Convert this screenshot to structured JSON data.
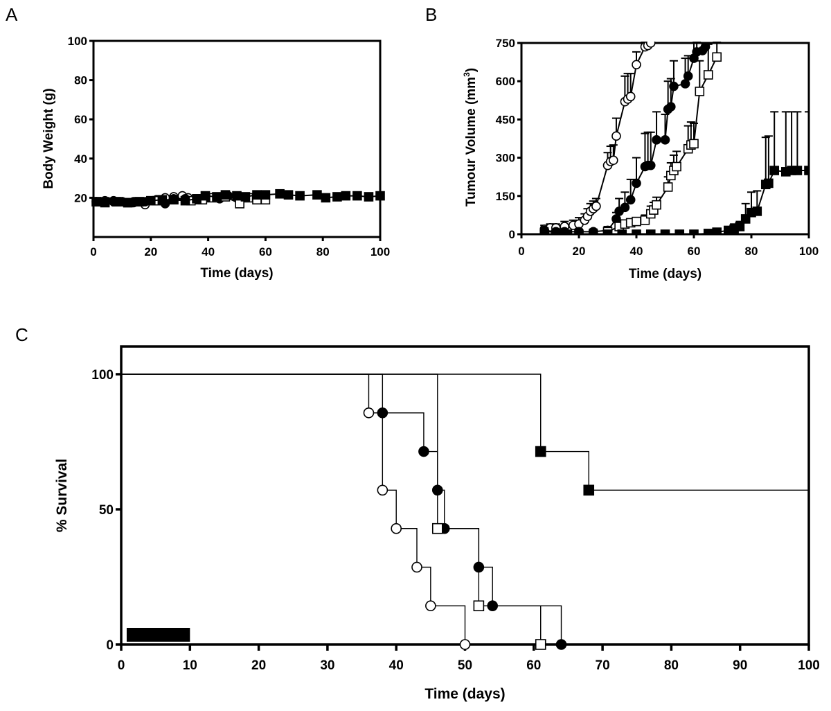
{
  "chart_data": [
    {
      "panel": "A",
      "type": "scatter",
      "title": "",
      "xlabel": "Time (days)",
      "ylabel": "Body Weight (g)",
      "xlim": [
        0,
        100
      ],
      "ylim": [
        0,
        100
      ],
      "xticks": [
        "0",
        "20",
        "40",
        "60",
        "80",
        "100"
      ],
      "yticks": [
        "20",
        "40",
        "60",
        "80",
        "100"
      ],
      "grid": false,
      "series": [
        {
          "name": "open circle",
          "marker": "circle-open",
          "x": [
            1,
            4,
            7,
            10,
            14,
            18,
            22,
            25,
            28,
            31,
            33
          ],
          "y": [
            18,
            18,
            18.5,
            18,
            18,
            16.5,
            19,
            20,
            20.5,
            21,
            20
          ]
        },
        {
          "name": "filled circle",
          "marker": "circle-filled",
          "x": [
            1,
            4,
            7,
            10,
            14,
            18,
            22,
            25,
            28,
            32,
            36,
            40,
            44,
            47
          ],
          "y": [
            18,
            18.5,
            18,
            18,
            17.5,
            18,
            18.5,
            17,
            19.5,
            19.5,
            19,
            20,
            19.5,
            21
          ]
        },
        {
          "name": "open square",
          "marker": "square-open",
          "x": [
            1,
            4,
            8,
            12,
            16,
            22,
            28,
            34,
            38,
            42,
            46,
            51,
            54,
            57,
            60
          ],
          "y": [
            18,
            18,
            18,
            17.5,
            18,
            18.5,
            19,
            18.5,
            19,
            20,
            20.5,
            17,
            20,
            19,
            19
          ]
        },
        {
          "name": "filled square",
          "marker": "square-filled",
          "x": [
            1,
            4,
            8,
            12,
            16,
            20,
            24,
            28,
            32,
            36,
            39,
            43,
            46,
            50,
            53,
            57,
            60,
            65,
            68,
            72,
            78,
            81,
            85,
            88,
            92,
            96,
            100
          ],
          "y": [
            18,
            17.5,
            18,
            17.5,
            18,
            18.5,
            19,
            19,
            18.5,
            19.5,
            21,
            20.5,
            21.5,
            21,
            20.5,
            21.5,
            21.5,
            22,
            21.5,
            21,
            21.5,
            20,
            20.5,
            21,
            21,
            20.5,
            21
          ]
        }
      ]
    },
    {
      "panel": "B",
      "type": "line",
      "title": "",
      "xlabel": "Time (days)",
      "ylabel": "Tumour Volume (mm",
      "ylabel_sup": "3",
      "ylabel_end": ")",
      "xlim": [
        0,
        100
      ],
      "ylim": [
        0,
        750
      ],
      "xticks": [
        "0",
        "20",
        "40",
        "60",
        "80",
        "100"
      ],
      "yticks": [
        "0",
        "150",
        "300",
        "450",
        "600",
        "750"
      ],
      "grid": false,
      "series": [
        {
          "name": "open circle",
          "marker": "circle-open",
          "x": [
            8,
            10,
            12,
            15,
            18,
            20,
            22,
            23,
            24,
            25,
            26,
            30,
            31,
            32,
            33,
            36,
            37,
            38,
            40,
            43,
            44,
            45
          ],
          "y": [
            20,
            25,
            25,
            30,
            35,
            40,
            55,
            70,
            90,
            100,
            110,
            270,
            285,
            290,
            385,
            520,
            530,
            540,
            665,
            735,
            740,
            750
          ],
          "err": [
            15,
            15,
            15,
            20,
            20,
            25,
            25,
            30,
            30,
            30,
            30,
            50,
            60,
            60,
            70,
            100,
            100,
            90,
            50,
            20,
            15,
            10
          ]
        },
        {
          "name": "filled circle",
          "marker": "circle-filled",
          "x": [
            8,
            12,
            15,
            20,
            25,
            30,
            33,
            34,
            36,
            38,
            40,
            43,
            44,
            45,
            47,
            50,
            51,
            52,
            53,
            57,
            58,
            60,
            61,
            63,
            64
          ],
          "y": [
            15,
            10,
            10,
            10,
            10,
            15,
            60,
            90,
            105,
            135,
            200,
            265,
            270,
            270,
            370,
            370,
            490,
            500,
            580,
            590,
            620,
            690,
            715,
            720,
            735
          ],
          "err": [
            10,
            10,
            10,
            10,
            10,
            15,
            25,
            50,
            60,
            80,
            100,
            130,
            130,
            130,
            110,
            100,
            110,
            110,
            100,
            100,
            80,
            60,
            40,
            30,
            15
          ]
        },
        {
          "name": "open square",
          "marker": "square-open",
          "x": [
            30,
            34,
            36,
            38,
            40,
            43,
            45,
            46,
            47,
            51,
            52,
            53,
            54,
            58,
            59,
            60,
            62,
            65,
            68
          ],
          "y": [
            10,
            30,
            40,
            45,
            50,
            55,
            80,
            95,
            115,
            185,
            230,
            250,
            265,
            335,
            350,
            355,
            560,
            625,
            695
          ],
          "err": [
            5,
            15,
            15,
            15,
            15,
            20,
            30,
            30,
            30,
            40,
            50,
            60,
            60,
            90,
            90,
            80,
            120,
            120,
            60
          ]
        },
        {
          "name": "filled square",
          "marker": "square-filled",
          "x": [
            8,
            12,
            16,
            20,
            25,
            30,
            35,
            40,
            45,
            50,
            55,
            60,
            65,
            68,
            72,
            74,
            76,
            78,
            80,
            82,
            85,
            86,
            88,
            92,
            94,
            96,
            100
          ],
          "y": [
            0,
            0,
            0,
            0,
            0,
            0,
            0,
            0,
            0,
            0,
            0,
            0,
            3,
            8,
            15,
            20,
            30,
            60,
            85,
            90,
            195,
            200,
            250,
            245,
            250,
            250,
            250
          ],
          "err": [
            0,
            0,
            0,
            0,
            0,
            0,
            0,
            0,
            0,
            0,
            0,
            0,
            3,
            5,
            15,
            20,
            20,
            60,
            80,
            80,
            185,
            185,
            230,
            235,
            230,
            230,
            230
          ]
        }
      ]
    },
    {
      "panel": "C",
      "type": "line",
      "subtype": "kaplan-meier",
      "title": "",
      "xlabel": "Time (days)",
      "ylabel": "% Survival",
      "xlim": [
        0,
        100
      ],
      "ylim": [
        0,
        110
      ],
      "xticks": [
        "0",
        "10",
        "20",
        "30",
        "40",
        "50",
        "60",
        "70",
        "80",
        "90",
        "100"
      ],
      "yticks": [
        "0",
        "50",
        "100"
      ],
      "grid": false,
      "treatment_bar": {
        "x_start": 1,
        "x_end": 10,
        "label": ""
      },
      "series": [
        {
          "name": "open circle",
          "marker": "circle-open",
          "steps": [
            [
              0,
              100
            ],
            [
              36,
              85.7
            ],
            [
              38,
              57.1
            ],
            [
              40,
              42.9
            ],
            [
              43,
              28.6
            ],
            [
              45,
              14.3
            ],
            [
              50,
              0
            ]
          ]
        },
        {
          "name": "filled circle",
          "marker": "circle-filled",
          "steps": [
            [
              0,
              100
            ],
            [
              38,
              85.7
            ],
            [
              44,
              71.4
            ],
            [
              46,
              57.1
            ],
            [
              47,
              42.9
            ],
            [
              52,
              28.6
            ],
            [
              54,
              14.3
            ],
            [
              64,
              0
            ]
          ]
        },
        {
          "name": "open square",
          "marker": "square-open",
          "steps": [
            [
              0,
              100
            ],
            [
              46,
              42.9
            ],
            [
              52,
              14.3
            ],
            [
              61,
              0
            ]
          ]
        },
        {
          "name": "filled square",
          "marker": "square-filled",
          "steps": [
            [
              0,
              100
            ],
            [
              61,
              71.4
            ],
            [
              68,
              57.1
            ]
          ],
          "end_x": 100
        }
      ]
    }
  ],
  "panels": {
    "a_letter": "A",
    "b_letter": "B",
    "c_letter": "C"
  }
}
